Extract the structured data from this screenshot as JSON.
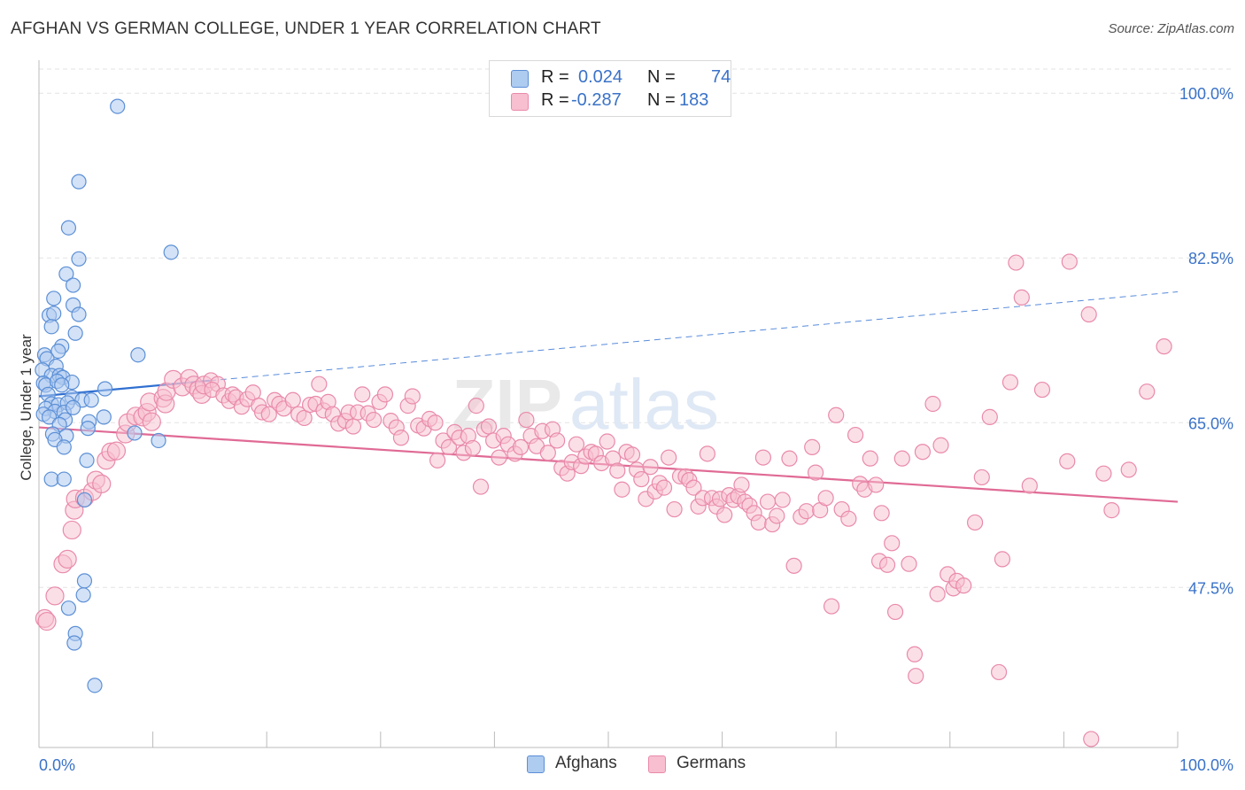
{
  "title": "AFGHAN VS GERMAN COLLEGE, UNDER 1 YEAR CORRELATION CHART",
  "source": "Source: ZipAtlas.com",
  "legend": {
    "rows": [
      {
        "r_label": "R =",
        "r_value": "0.024",
        "n_label": "N =",
        "n_value": "74"
      },
      {
        "r_label": "R =",
        "r_value": "-0.287",
        "n_label": "N =",
        "n_value": "183"
      }
    ]
  },
  "bottom_legend": {
    "afghans": "Afghans",
    "germans": "Germans"
  },
  "colors": {
    "afghan_fill": "#aecbf0",
    "afghan_stroke": "#5b8fd6",
    "afghan_line": "#2f6fd1",
    "german_fill": "#f7bfd0",
    "german_stroke": "#e98aaa",
    "german_line": "#e06a95",
    "tick_label": "#3a72c8",
    "grid": "#e3e3e3"
  },
  "chart_data": {
    "type": "scatter",
    "title": "AFGHAN VS GERMAN COLLEGE, UNDER 1 YEAR CORRELATION CHART",
    "xlabel": "",
    "ylabel": "College, Under 1 year",
    "xlim": [
      0,
      100
    ],
    "ylim": [
      30.5,
      103.5
    ],
    "x_tick_labels": [
      "0.0%",
      "100.0%"
    ],
    "y_ticks": [
      47.5,
      65.0,
      82.5,
      100.0
    ],
    "y_tick_labels": [
      "47.5%",
      "65.0%",
      "82.5%",
      "100.0%"
    ],
    "grid": true,
    "watermark": "ZIPatlas",
    "series": [
      {
        "name": "Afghans",
        "R": 0.024,
        "N": 74,
        "trend": {
          "x": [
            0,
            100
          ],
          "y": [
            67.8,
            78.9
          ],
          "solid_until_x": 15
        },
        "points": [
          [
            6.9,
            98.6
          ],
          [
            3.5,
            90.6
          ],
          [
            2.6,
            85.7
          ],
          [
            11.6,
            83.1
          ],
          [
            3.5,
            82.4
          ],
          [
            2.4,
            80.8
          ],
          [
            3.0,
            79.6
          ],
          [
            1.3,
            78.2
          ],
          [
            3.0,
            77.5
          ],
          [
            0.9,
            76.4
          ],
          [
            1.3,
            76.6
          ],
          [
            3.5,
            76.5
          ],
          [
            1.1,
            75.2
          ],
          [
            3.2,
            74.5
          ],
          [
            2.0,
            73.1
          ],
          [
            1.7,
            72.6
          ],
          [
            0.5,
            72.2
          ],
          [
            0.7,
            71.8
          ],
          [
            8.7,
            72.2
          ],
          [
            1.5,
            71.0
          ],
          [
            0.3,
            70.6
          ],
          [
            1.1,
            70.0
          ],
          [
            1.8,
            70.0
          ],
          [
            2.1,
            69.8
          ],
          [
            2.9,
            69.3
          ],
          [
            0.4,
            69.2
          ],
          [
            0.6,
            69.0
          ],
          [
            1.6,
            69.4
          ],
          [
            2.0,
            69.0
          ],
          [
            5.8,
            68.6
          ],
          [
            0.8,
            68.0
          ],
          [
            2.9,
            67.7
          ],
          [
            3.8,
            67.4
          ],
          [
            4.6,
            67.4
          ],
          [
            1.1,
            67.0
          ],
          [
            1.7,
            66.9
          ],
          [
            2.5,
            67.1
          ],
          [
            0.6,
            66.5
          ],
          [
            1.4,
            66.2
          ],
          [
            2.2,
            66.1
          ],
          [
            3.0,
            66.6
          ],
          [
            0.4,
            65.9
          ],
          [
            0.9,
            65.6
          ],
          [
            2.3,
            65.3
          ],
          [
            1.8,
            64.8
          ],
          [
            4.4,
            65.1
          ],
          [
            5.7,
            65.6
          ],
          [
            4.3,
            64.4
          ],
          [
            8.4,
            63.9
          ],
          [
            1.2,
            63.8
          ],
          [
            2.4,
            63.6
          ],
          [
            1.4,
            63.2
          ],
          [
            2.2,
            62.4
          ],
          [
            10.5,
            63.1
          ],
          [
            4.2,
            61.0
          ],
          [
            1.1,
            59.0
          ],
          [
            2.2,
            59.0
          ],
          [
            4.0,
            56.8
          ],
          [
            4.0,
            48.2
          ],
          [
            3.9,
            46.7
          ],
          [
            2.6,
            45.3
          ],
          [
            3.2,
            42.6
          ],
          [
            3.1,
            41.6
          ],
          [
            4.9,
            37.1
          ]
        ]
      },
      {
        "name": "Germans",
        "R": -0.287,
        "N": 183,
        "trend": {
          "x": [
            0,
            100
          ],
          "y": [
            64.5,
            56.6
          ]
        },
        "points": [
          [
            0.5,
            44.2
          ],
          [
            0.7,
            43.9
          ],
          [
            1.4,
            46.6
          ],
          [
            2.1,
            50.0
          ],
          [
            2.5,
            50.5
          ],
          [
            2.9,
            53.6
          ],
          [
            3.1,
            55.7
          ],
          [
            3.2,
            56.9
          ],
          [
            4.0,
            57.0
          ],
          [
            4.7,
            57.7
          ],
          [
            5.0,
            58.9
          ],
          [
            5.5,
            58.5
          ],
          [
            5.9,
            61.0
          ],
          [
            6.3,
            61.9
          ],
          [
            6.8,
            62.0
          ],
          [
            7.6,
            63.8
          ],
          [
            7.8,
            65.0
          ],
          [
            8.5,
            65.7
          ],
          [
            9.1,
            65.6
          ],
          [
            9.5,
            66.1
          ],
          [
            9.9,
            65.1
          ],
          [
            9.7,
            67.2
          ],
          [
            10.9,
            67.6
          ],
          [
            11.1,
            67.0
          ],
          [
            11.2,
            68.3
          ],
          [
            11.8,
            69.6
          ],
          [
            12.6,
            68.8
          ],
          [
            13.2,
            69.7
          ],
          [
            13.6,
            69.0
          ],
          [
            14.0,
            68.5
          ],
          [
            14.3,
            68.0
          ],
          [
            14.5,
            69.0
          ],
          [
            15.1,
            69.5
          ],
          [
            15.7,
            69.1
          ],
          [
            15.2,
            68.5
          ],
          [
            16.2,
            67.9
          ],
          [
            16.7,
            67.3
          ],
          [
            17.0,
            68.0
          ],
          [
            17.3,
            67.7
          ],
          [
            17.8,
            66.7
          ],
          [
            18.3,
            67.5
          ],
          [
            18.8,
            68.2
          ],
          [
            19.3,
            66.8
          ],
          [
            19.6,
            66.1
          ],
          [
            20.2,
            65.9
          ],
          [
            20.7,
            67.4
          ],
          [
            21.1,
            67.0
          ],
          [
            21.5,
            66.5
          ],
          [
            22.3,
            67.4
          ],
          [
            22.8,
            65.9
          ],
          [
            23.3,
            65.5
          ],
          [
            23.8,
            66.9
          ],
          [
            24.3,
            67.0
          ],
          [
            24.6,
            69.1
          ],
          [
            25.0,
            66.3
          ],
          [
            25.4,
            67.2
          ],
          [
            25.8,
            65.9
          ],
          [
            26.3,
            64.9
          ],
          [
            26.9,
            65.2
          ],
          [
            27.2,
            66.1
          ],
          [
            27.6,
            64.6
          ],
          [
            28.0,
            66.1
          ],
          [
            28.4,
            68.0
          ],
          [
            28.9,
            66.0
          ],
          [
            29.4,
            65.3
          ],
          [
            29.9,
            67.2
          ],
          [
            30.4,
            68.0
          ],
          [
            30.9,
            65.2
          ],
          [
            31.4,
            64.5
          ],
          [
            31.8,
            63.4
          ],
          [
            32.4,
            66.8
          ],
          [
            32.8,
            67.8
          ],
          [
            33.3,
            64.7
          ],
          [
            33.8,
            64.4
          ],
          [
            34.3,
            65.4
          ],
          [
            34.8,
            65.0
          ],
          [
            35.0,
            61.0
          ],
          [
            35.5,
            63.1
          ],
          [
            36.0,
            62.4
          ],
          [
            36.5,
            64.0
          ],
          [
            36.9,
            63.4
          ],
          [
            37.3,
            61.8
          ],
          [
            37.7,
            63.6
          ],
          [
            38.1,
            62.3
          ],
          [
            38.4,
            66.8
          ],
          [
            38.8,
            58.2
          ],
          [
            39.1,
            64.3
          ],
          [
            39.5,
            64.6
          ],
          [
            39.9,
            63.1
          ],
          [
            40.4,
            61.3
          ],
          [
            40.8,
            63.6
          ],
          [
            41.2,
            62.7
          ],
          [
            41.8,
            61.7
          ],
          [
            42.3,
            62.4
          ],
          [
            42.8,
            65.3
          ],
          [
            43.2,
            63.6
          ],
          [
            43.7,
            62.5
          ],
          [
            44.2,
            64.1
          ],
          [
            44.7,
            61.8
          ],
          [
            45.1,
            64.3
          ],
          [
            45.5,
            63.1
          ],
          [
            45.9,
            60.2
          ],
          [
            46.4,
            59.6
          ],
          [
            46.8,
            60.8
          ],
          [
            47.2,
            62.7
          ],
          [
            47.6,
            60.4
          ],
          [
            48.0,
            61.4
          ],
          [
            48.5,
            61.9
          ],
          [
            48.9,
            61.7
          ],
          [
            49.4,
            60.7
          ],
          [
            49.9,
            63.0
          ],
          [
            50.4,
            61.2
          ],
          [
            50.8,
            59.9
          ],
          [
            51.2,
            57.9
          ],
          [
            51.6,
            61.9
          ],
          [
            52.1,
            61.6
          ],
          [
            52.5,
            60.0
          ],
          [
            52.9,
            59.0
          ],
          [
            53.3,
            56.9
          ],
          [
            53.7,
            60.3
          ],
          [
            54.1,
            57.7
          ],
          [
            54.5,
            58.6
          ],
          [
            54.9,
            58.1
          ],
          [
            55.3,
            61.3
          ],
          [
            55.8,
            55.8
          ],
          [
            56.3,
            59.3
          ],
          [
            56.8,
            59.3
          ],
          [
            57.1,
            58.9
          ],
          [
            57.5,
            58.1
          ],
          [
            57.9,
            56.1
          ],
          [
            58.3,
            57.0
          ],
          [
            58.7,
            61.7
          ],
          [
            59.1,
            57.0
          ],
          [
            59.5,
            56.1
          ],
          [
            59.8,
            56.9
          ],
          [
            60.2,
            55.2
          ],
          [
            60.6,
            57.3
          ],
          [
            61.0,
            56.8
          ],
          [
            61.4,
            57.2
          ],
          [
            61.7,
            58.4
          ],
          [
            62.0,
            56.6
          ],
          [
            62.4,
            56.2
          ],
          [
            62.8,
            55.4
          ],
          [
            63.2,
            54.4
          ],
          [
            63.6,
            61.3
          ],
          [
            64.0,
            56.6
          ],
          [
            64.4,
            54.2
          ],
          [
            64.8,
            55.1
          ],
          [
            65.3,
            56.8
          ],
          [
            65.9,
            61.2
          ],
          [
            66.3,
            49.8
          ],
          [
            66.9,
            55.0
          ],
          [
            67.4,
            55.6
          ],
          [
            67.9,
            62.4
          ],
          [
            68.2,
            59.7
          ],
          [
            68.6,
            55.7
          ],
          [
            69.1,
            57.0
          ],
          [
            69.6,
            45.5
          ],
          [
            70.0,
            65.8
          ],
          [
            70.5,
            55.8
          ],
          [
            71.1,
            54.8
          ],
          [
            71.7,
            63.7
          ],
          [
            72.1,
            58.5
          ],
          [
            72.5,
            57.9
          ],
          [
            73.0,
            61.2
          ],
          [
            73.5,
            58.4
          ],
          [
            74.0,
            55.4
          ],
          [
            73.8,
            50.3
          ],
          [
            74.5,
            49.9
          ],
          [
            74.9,
            52.2
          ],
          [
            75.2,
            44.9
          ],
          [
            75.8,
            61.2
          ],
          [
            76.4,
            50.0
          ],
          [
            76.9,
            40.4
          ],
          [
            77.0,
            38.1
          ],
          [
            77.6,
            61.9
          ],
          [
            78.5,
            67.0
          ],
          [
            78.9,
            46.8
          ],
          [
            79.2,
            62.6
          ],
          [
            79.8,
            48.9
          ],
          [
            80.3,
            47.4
          ],
          [
            80.6,
            48.2
          ],
          [
            81.2,
            47.7
          ],
          [
            82.2,
            54.4
          ],
          [
            82.8,
            59.2
          ],
          [
            83.5,
            65.6
          ],
          [
            84.3,
            38.5
          ],
          [
            84.6,
            50.5
          ],
          [
            85.3,
            69.3
          ],
          [
            85.8,
            82.0
          ],
          [
            86.3,
            78.3
          ],
          [
            87.0,
            58.3
          ],
          [
            88.1,
            68.5
          ],
          [
            90.3,
            60.9
          ],
          [
            90.5,
            82.1
          ],
          [
            92.2,
            76.5
          ],
          [
            92.4,
            31.4
          ],
          [
            93.5,
            59.6
          ],
          [
            94.2,
            55.7
          ],
          [
            95.7,
            60.0
          ],
          [
            97.3,
            68.3
          ],
          [
            98.8,
            73.1
          ]
        ]
      }
    ]
  }
}
